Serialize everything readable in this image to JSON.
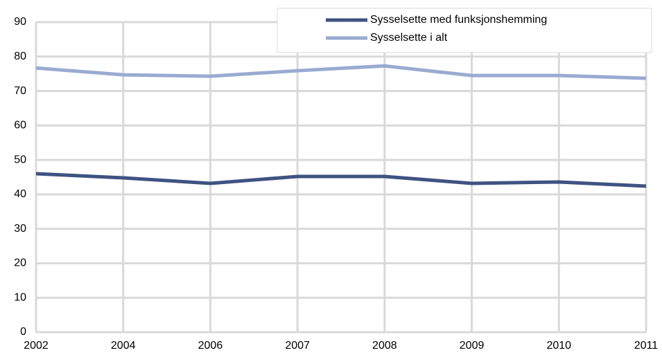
{
  "chart_data": {
    "type": "line",
    "categories": [
      "2002",
      "2004",
      "2006",
      "2007",
      "2008",
      "2009",
      "2010",
      "2011"
    ],
    "series": [
      {
        "name": "Sysselsette med funksjonshemming",
        "color": "#3e5381",
        "values": [
          46.0,
          44.8,
          43.2,
          45.2,
          45.2,
          43.2,
          43.6,
          42.4
        ]
      },
      {
        "name": "Sysselsette i alt",
        "color": "#9aabd1",
        "values": [
          76.7,
          74.7,
          74.3,
          75.9,
          77.3,
          74.5,
          74.5,
          73.7
        ]
      }
    ],
    "ylim": [
      0,
      90
    ],
    "yticks": [
      0,
      10,
      20,
      30,
      40,
      50,
      60,
      70,
      80,
      90
    ],
    "grid": true,
    "legend": "top-right"
  }
}
